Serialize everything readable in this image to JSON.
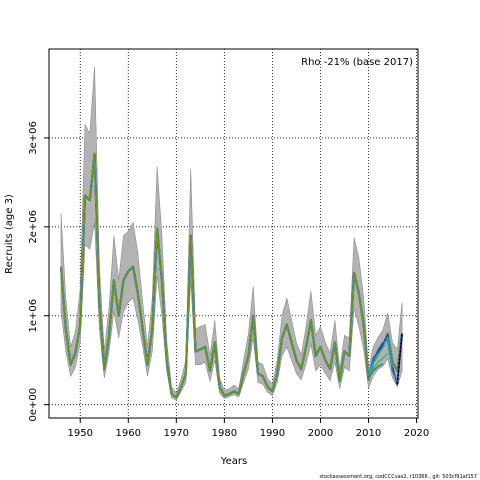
{
  "chart_data": {
    "type": "line",
    "annotation": "Rho -21% (base 2017)",
    "xlabel": "Years",
    "ylabel": "Recruits (age 3)",
    "footer": "stockassessment.org,  codCCCvas2,  r10366 ,  git: 503cf91af157",
    "xlim": [
      1943.5,
      2020.3
    ],
    "ylim": [
      -150000,
      4000000
    ],
    "x_ticks": [
      1950,
      1960,
      1970,
      1980,
      1990,
      2000,
      2010,
      2020
    ],
    "x_tick_labels": [
      "1950",
      "1960",
      "1970",
      "1980",
      "1990",
      "2000",
      "2010",
      "2020"
    ],
    "y_ticks": [
      0,
      1000000,
      2000000,
      3000000
    ],
    "y_tick_labels": [
      "0e+00",
      "1e+06",
      "2e+06",
      "3e+06"
    ],
    "grid": true,
    "colors": {
      "band": "#b3b3b3",
      "band_edge": "#8c8c8c",
      "grid": "#000000",
      "peels": [
        "#2a1a8c",
        "#2b6fb3",
        "#27a8b0",
        "#3cb86a",
        "#9acd32"
      ],
      "base": "#6b8e23"
    },
    "series": [
      {
        "x": [
          1946,
          1947,
          1948,
          1949,
          1950,
          1951,
          1952,
          1953,
          1954,
          1955,
          1956,
          1957,
          1958,
          1959,
          1960,
          1961,
          1962,
          1963,
          1964,
          1965,
          1966,
          1967,
          1968,
          1969,
          1970,
          1971,
          1972,
          1973,
          1974,
          1975,
          1976,
          1977,
          1978,
          1979,
          1980,
          1981,
          1982,
          1983,
          1984,
          1985,
          1986,
          1987,
          1988,
          1989,
          1990,
          1991,
          1992,
          1993,
          1994,
          1995,
          1996,
          1997,
          1998,
          1999,
          2000,
          2001,
          2002,
          2003,
          2004,
          2005,
          2006,
          2007,
          2008,
          2009,
          2010,
          2011,
          2012,
          2013,
          2014,
          2015,
          2016,
          2017
        ],
        "values": [
          1550000,
          850000,
          450000,
          580000,
          900000,
          2350000,
          2300000,
          2820000,
          1150000,
          400000,
          780000,
          1400000,
          1000000,
          1400000,
          1500000,
          1550000,
          1250000,
          850000,
          450000,
          850000,
          1980000,
          1400000,
          500000,
          120000,
          80000,
          200000,
          350000,
          1900000,
          600000,
          620000,
          650000,
          380000,
          700000,
          200000,
          100000,
          120000,
          150000,
          120000,
          350000,
          550000,
          1000000,
          350000,
          320000,
          200000,
          150000,
          350000,
          750000,
          900000,
          700000,
          500000,
          400000,
          650000,
          950000,
          550000,
          650000,
          500000,
          400000,
          700000,
          270000,
          600000,
          550000,
          1480000,
          1250000,
          900000,
          280000,
          480000,
          580000,
          650000,
          800000,
          480000,
          380000,
          800000
        ],
        "lower": [
          1050000,
          600000,
          320000,
          420000,
          700000,
          1800000,
          1750000,
          2050000,
          850000,
          300000,
          600000,
          1050000,
          750000,
          1050000,
          1150000,
          1200000,
          950000,
          650000,
          320000,
          600000,
          1450000,
          1000000,
          380000,
          80000,
          50000,
          150000,
          250000,
          1400000,
          450000,
          450000,
          480000,
          260000,
          500000,
          130000,
          70000,
          90000,
          110000,
          90000,
          250000,
          400000,
          750000,
          250000,
          230000,
          140000,
          100000,
          250000,
          550000,
          650000,
          500000,
          350000,
          280000,
          460000,
          680000,
          380000,
          450000,
          350000,
          270000,
          480000,
          180000,
          420000,
          380000,
          1080000,
          880000,
          620000,
          190000,
          320000,
          400000,
          430000,
          520000,
          300000,
          200000,
          380000
        ],
        "upper": [
          2150000,
          1200000,
          650000,
          820000,
          1300000,
          3150000,
          3050000,
          3800000,
          1550000,
          600000,
          1100000,
          1900000,
          1400000,
          1900000,
          1950000,
          2050000,
          1700000,
          1150000,
          650000,
          1200000,
          2680000,
          1900000,
          720000,
          200000,
          130000,
          290000,
          500000,
          2650000,
          850000,
          880000,
          900000,
          550000,
          950000,
          300000,
          160000,
          180000,
          220000,
          180000,
          500000,
          800000,
          1330000,
          480000,
          450000,
          290000,
          230000,
          500000,
          1000000,
          1200000,
          950000,
          700000,
          560000,
          880000,
          1280000,
          780000,
          880000,
          700000,
          580000,
          950000,
          400000,
          780000,
          750000,
          1880000,
          1650000,
          1200000,
          400000,
          650000,
          760000,
          840000,
          1030000,
          700000,
          620000,
          1150000
        ]
      }
    ],
    "peels": [
      {
        "x": [
          2010,
          2011,
          2012,
          2013,
          2014,
          2015,
          2016,
          2017
        ],
        "values": [
          300000,
          520000,
          600000,
          680000,
          780000,
          420000,
          230000,
          800000
        ]
      },
      {
        "x": [
          2010,
          2011,
          2012,
          2013,
          2014,
          2015,
          2016
        ],
        "values": [
          330000,
          500000,
          620000,
          700000,
          720000,
          380000,
          260000
        ]
      },
      {
        "x": [
          2010,
          2011,
          2012,
          2013,
          2014,
          2015
        ],
        "values": [
          320000,
          460000,
          560000,
          640000,
          760000,
          420000
        ]
      },
      {
        "x": [
          2010,
          2011,
          2012,
          2013,
          2014
        ],
        "values": [
          300000,
          400000,
          480000,
          520000,
          580000
        ]
      },
      {
        "x": [
          2010,
          2011,
          2012,
          2013
        ],
        "values": [
          300000,
          380000,
          430000,
          460000
        ]
      }
    ]
  }
}
